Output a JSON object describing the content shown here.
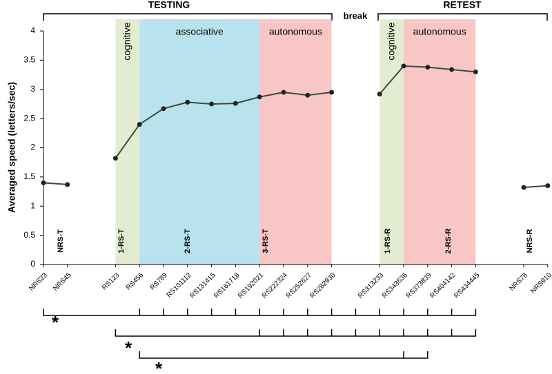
{
  "chart_data": {
    "type": "line",
    "y_label": "Averaged speed (letters/sec)",
    "categories": [
      "NRS23",
      "NRS45",
      null,
      "RS123",
      "RS456",
      "RS789",
      "RS101112",
      "RS131415",
      "RS161718",
      "RS192021",
      "RS222324",
      "RS252627",
      "RS282930",
      null,
      "RS313233",
      "RS343536",
      "RS373839",
      "RS404142",
      "RS434445",
      null,
      "NRS78",
      "NRS910"
    ],
    "series": [
      {
        "color": "#3b4a3e",
        "values": [
          1.4,
          1.37,
          null,
          1.82,
          2.4,
          2.67,
          2.78,
          2.75,
          2.76,
          2.87,
          2.95,
          2.9,
          2.95,
          null,
          2.92,
          3.4,
          3.38,
          3.34,
          3.3,
          null,
          1.32,
          1.35
        ]
      }
    ],
    "ylim": [
      0,
      4
    ],
    "yticks": [
      0,
      0.5,
      1,
      1.5,
      2,
      2.5,
      3,
      3.5,
      4
    ],
    "phases": [
      {
        "label": "cognitive",
        "from": "RS123",
        "to": "RS456",
        "color": "#e3ecd1",
        "vertical": true
      },
      {
        "label": "associative",
        "from": "RS456",
        "to": "RS192021",
        "color": "#b8e3ee"
      },
      {
        "label": "autonomous",
        "from": "RS192021",
        "to": "RS282930",
        "color": "#f9c6c6"
      },
      {
        "label": "cognitive",
        "from": "RS313233",
        "to": "RS343536",
        "color": "#e3ecd1",
        "vertical": true
      },
      {
        "label": "autonomous",
        "from": "RS343536",
        "to": "RS434445",
        "color": "#f9c6c6"
      }
    ],
    "sections": [
      "TESTING",
      "break",
      "RETEST"
    ],
    "group_labels": [
      "NRS-T",
      "1-RS-T",
      "2-RS-T",
      "3-RS-T",
      "1-RS-R",
      "2-RS-R",
      "NRS-R"
    ],
    "significance": [
      "*",
      "*",
      "*"
    ]
  }
}
